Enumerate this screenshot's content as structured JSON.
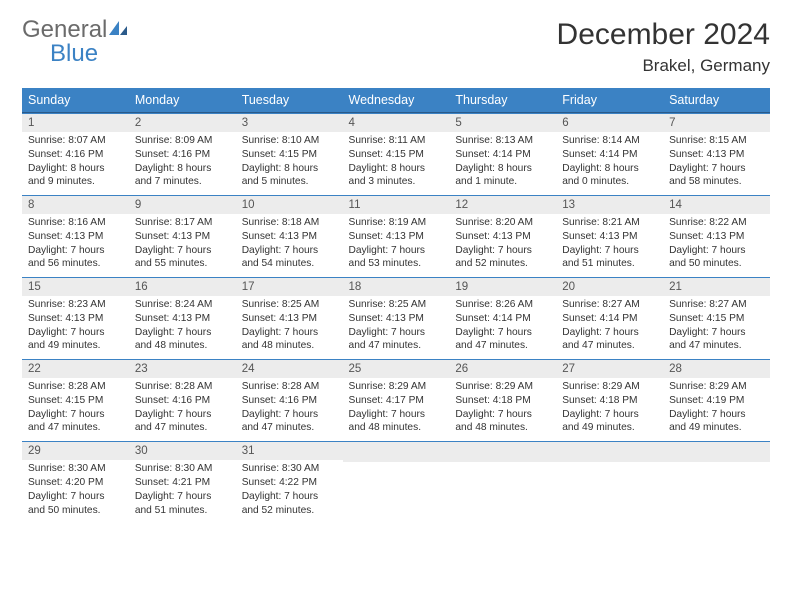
{
  "brand": {
    "general": "General",
    "blue": "Blue"
  },
  "title": "December 2024",
  "location": "Brakel, Germany",
  "columns": [
    "Sunday",
    "Monday",
    "Tuesday",
    "Wednesday",
    "Thursday",
    "Friday",
    "Saturday"
  ],
  "colors": {
    "header_bg": "#3b82c4",
    "header_text": "#ffffff",
    "daynum_bg": "#ececec",
    "cell_border": "#3b82c4",
    "page_bg": "#ffffff",
    "text": "#333333",
    "logo_gray": "#6b6b6b",
    "logo_blue": "#3b82c4"
  },
  "weeks": [
    [
      {
        "n": "1",
        "sr": "Sunrise: 8:07 AM",
        "ss": "Sunset: 4:16 PM",
        "dl": "Daylight: 8 hours and 9 minutes."
      },
      {
        "n": "2",
        "sr": "Sunrise: 8:09 AM",
        "ss": "Sunset: 4:16 PM",
        "dl": "Daylight: 8 hours and 7 minutes."
      },
      {
        "n": "3",
        "sr": "Sunrise: 8:10 AM",
        "ss": "Sunset: 4:15 PM",
        "dl": "Daylight: 8 hours and 5 minutes."
      },
      {
        "n": "4",
        "sr": "Sunrise: 8:11 AM",
        "ss": "Sunset: 4:15 PM",
        "dl": "Daylight: 8 hours and 3 minutes."
      },
      {
        "n": "5",
        "sr": "Sunrise: 8:13 AM",
        "ss": "Sunset: 4:14 PM",
        "dl": "Daylight: 8 hours and 1 minute."
      },
      {
        "n": "6",
        "sr": "Sunrise: 8:14 AM",
        "ss": "Sunset: 4:14 PM",
        "dl": "Daylight: 8 hours and 0 minutes."
      },
      {
        "n": "7",
        "sr": "Sunrise: 8:15 AM",
        "ss": "Sunset: 4:13 PM",
        "dl": "Daylight: 7 hours and 58 minutes."
      }
    ],
    [
      {
        "n": "8",
        "sr": "Sunrise: 8:16 AM",
        "ss": "Sunset: 4:13 PM",
        "dl": "Daylight: 7 hours and 56 minutes."
      },
      {
        "n": "9",
        "sr": "Sunrise: 8:17 AM",
        "ss": "Sunset: 4:13 PM",
        "dl": "Daylight: 7 hours and 55 minutes."
      },
      {
        "n": "10",
        "sr": "Sunrise: 8:18 AM",
        "ss": "Sunset: 4:13 PM",
        "dl": "Daylight: 7 hours and 54 minutes."
      },
      {
        "n": "11",
        "sr": "Sunrise: 8:19 AM",
        "ss": "Sunset: 4:13 PM",
        "dl": "Daylight: 7 hours and 53 minutes."
      },
      {
        "n": "12",
        "sr": "Sunrise: 8:20 AM",
        "ss": "Sunset: 4:13 PM",
        "dl": "Daylight: 7 hours and 52 minutes."
      },
      {
        "n": "13",
        "sr": "Sunrise: 8:21 AM",
        "ss": "Sunset: 4:13 PM",
        "dl": "Daylight: 7 hours and 51 minutes."
      },
      {
        "n": "14",
        "sr": "Sunrise: 8:22 AM",
        "ss": "Sunset: 4:13 PM",
        "dl": "Daylight: 7 hours and 50 minutes."
      }
    ],
    [
      {
        "n": "15",
        "sr": "Sunrise: 8:23 AM",
        "ss": "Sunset: 4:13 PM",
        "dl": "Daylight: 7 hours and 49 minutes."
      },
      {
        "n": "16",
        "sr": "Sunrise: 8:24 AM",
        "ss": "Sunset: 4:13 PM",
        "dl": "Daylight: 7 hours and 48 minutes."
      },
      {
        "n": "17",
        "sr": "Sunrise: 8:25 AM",
        "ss": "Sunset: 4:13 PM",
        "dl": "Daylight: 7 hours and 48 minutes."
      },
      {
        "n": "18",
        "sr": "Sunrise: 8:25 AM",
        "ss": "Sunset: 4:13 PM",
        "dl": "Daylight: 7 hours and 47 minutes."
      },
      {
        "n": "19",
        "sr": "Sunrise: 8:26 AM",
        "ss": "Sunset: 4:14 PM",
        "dl": "Daylight: 7 hours and 47 minutes."
      },
      {
        "n": "20",
        "sr": "Sunrise: 8:27 AM",
        "ss": "Sunset: 4:14 PM",
        "dl": "Daylight: 7 hours and 47 minutes."
      },
      {
        "n": "21",
        "sr": "Sunrise: 8:27 AM",
        "ss": "Sunset: 4:15 PM",
        "dl": "Daylight: 7 hours and 47 minutes."
      }
    ],
    [
      {
        "n": "22",
        "sr": "Sunrise: 8:28 AM",
        "ss": "Sunset: 4:15 PM",
        "dl": "Daylight: 7 hours and 47 minutes."
      },
      {
        "n": "23",
        "sr": "Sunrise: 8:28 AM",
        "ss": "Sunset: 4:16 PM",
        "dl": "Daylight: 7 hours and 47 minutes."
      },
      {
        "n": "24",
        "sr": "Sunrise: 8:28 AM",
        "ss": "Sunset: 4:16 PM",
        "dl": "Daylight: 7 hours and 47 minutes."
      },
      {
        "n": "25",
        "sr": "Sunrise: 8:29 AM",
        "ss": "Sunset: 4:17 PM",
        "dl": "Daylight: 7 hours and 48 minutes."
      },
      {
        "n": "26",
        "sr": "Sunrise: 8:29 AM",
        "ss": "Sunset: 4:18 PM",
        "dl": "Daylight: 7 hours and 48 minutes."
      },
      {
        "n": "27",
        "sr": "Sunrise: 8:29 AM",
        "ss": "Sunset: 4:18 PM",
        "dl": "Daylight: 7 hours and 49 minutes."
      },
      {
        "n": "28",
        "sr": "Sunrise: 8:29 AM",
        "ss": "Sunset: 4:19 PM",
        "dl": "Daylight: 7 hours and 49 minutes."
      }
    ],
    [
      {
        "n": "29",
        "sr": "Sunrise: 8:30 AM",
        "ss": "Sunset: 4:20 PM",
        "dl": "Daylight: 7 hours and 50 minutes."
      },
      {
        "n": "30",
        "sr": "Sunrise: 8:30 AM",
        "ss": "Sunset: 4:21 PM",
        "dl": "Daylight: 7 hours and 51 minutes."
      },
      {
        "n": "31",
        "sr": "Sunrise: 8:30 AM",
        "ss": "Sunset: 4:22 PM",
        "dl": "Daylight: 7 hours and 52 minutes."
      },
      null,
      null,
      null,
      null
    ]
  ]
}
